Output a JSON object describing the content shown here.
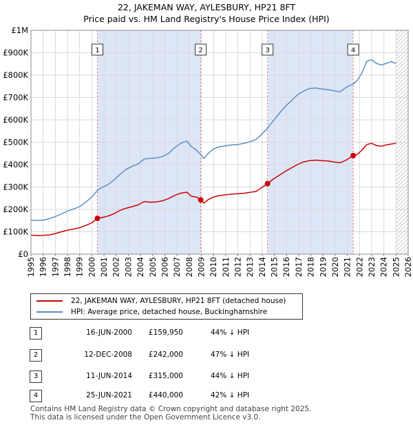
{
  "chart_data": {
    "type": "line",
    "title": "22, JAKEMAN WAY, AYLESBURY, HP21 8FT",
    "subtitle": "Price paid vs. HM Land Registry's House Price Index (HPI)",
    "xlim": [
      1995,
      2026
    ],
    "ylim": [
      0,
      1000000
    ],
    "x_ticks": [
      1995,
      1996,
      1997,
      1998,
      1999,
      2000,
      2001,
      2002,
      2003,
      2004,
      2005,
      2006,
      2007,
      2008,
      2009,
      2010,
      2011,
      2012,
      2013,
      2014,
      2015,
      2016,
      2017,
      2018,
      2019,
      2020,
      2021,
      2022,
      2023,
      2024,
      2025,
      2026
    ],
    "y_ticks": [
      {
        "value": 0,
        "label": "£0"
      },
      {
        "value": 100000,
        "label": "£100K"
      },
      {
        "value": 200000,
        "label": "£200K"
      },
      {
        "value": 300000,
        "label": "£300K"
      },
      {
        "value": 400000,
        "label": "£400K"
      },
      {
        "value": 500000,
        "label": "£500K"
      },
      {
        "value": 600000,
        "label": "£600K"
      },
      {
        "value": 700000,
        "label": "£700K"
      },
      {
        "value": 800000,
        "label": "£800K"
      },
      {
        "value": 900000,
        "label": "£900K"
      },
      {
        "value": 1000000,
        "label": "£1M"
      }
    ],
    "grid": true,
    "series": [
      {
        "name": "22, JAKEMAN WAY, AYLESBURY, HP21 8FT (detached house)",
        "color": "#cc0000",
        "points": [
          [
            1995.0,
            85000
          ],
          [
            1995.5,
            83000
          ],
          [
            1996.0,
            84000
          ],
          [
            1996.5,
            86000
          ],
          [
            1997.0,
            92000
          ],
          [
            1997.5,
            100000
          ],
          [
            1998.0,
            107000
          ],
          [
            1998.5,
            112000
          ],
          [
            1999.0,
            118000
          ],
          [
            1999.5,
            128000
          ],
          [
            2000.0,
            140000
          ],
          [
            2000.46,
            159950
          ],
          [
            2000.8,
            163000
          ],
          [
            2001.3,
            170000
          ],
          [
            2001.8,
            180000
          ],
          [
            2002.3,
            195000
          ],
          [
            2002.8,
            205000
          ],
          [
            2003.3,
            212000
          ],
          [
            2003.8,
            220000
          ],
          [
            2004.3,
            235000
          ],
          [
            2004.8,
            232000
          ],
          [
            2005.3,
            233000
          ],
          [
            2005.8,
            238000
          ],
          [
            2006.3,
            248000
          ],
          [
            2006.8,
            262000
          ],
          [
            2007.3,
            272000
          ],
          [
            2007.8,
            277000
          ],
          [
            2008.2,
            258000
          ],
          [
            2008.6,
            255000
          ],
          [
            2008.95,
            242000
          ],
          [
            2009.2,
            228000
          ],
          [
            2009.6,
            245000
          ],
          [
            2010.0,
            255000
          ],
          [
            2010.5,
            262000
          ],
          [
            2011.0,
            265000
          ],
          [
            2011.5,
            268000
          ],
          [
            2012.0,
            270000
          ],
          [
            2012.5,
            272000
          ],
          [
            2013.0,
            276000
          ],
          [
            2013.5,
            280000
          ],
          [
            2013.9,
            295000
          ],
          [
            2014.44,
            315000
          ],
          [
            2014.9,
            335000
          ],
          [
            2015.4,
            352000
          ],
          [
            2015.9,
            370000
          ],
          [
            2016.4,
            385000
          ],
          [
            2016.9,
            400000
          ],
          [
            2017.4,
            412000
          ],
          [
            2017.9,
            418000
          ],
          [
            2018.4,
            420000
          ],
          [
            2018.9,
            418000
          ],
          [
            2019.4,
            416000
          ],
          [
            2019.9,
            412000
          ],
          [
            2020.4,
            408000
          ],
          [
            2020.9,
            420000
          ],
          [
            2021.48,
            440000
          ],
          [
            2021.8,
            445000
          ],
          [
            2022.2,
            465000
          ],
          [
            2022.6,
            490000
          ],
          [
            2023.0,
            495000
          ],
          [
            2023.4,
            485000
          ],
          [
            2023.8,
            482000
          ],
          [
            2024.2,
            488000
          ],
          [
            2024.6,
            492000
          ],
          [
            2025.0,
            495000
          ]
        ]
      },
      {
        "name": "HPI: Average price, detached house, Buckinghamshire",
        "color": "#5b8ec4",
        "points": [
          [
            1995.0,
            152000
          ],
          [
            1995.5,
            150000
          ],
          [
            1996.0,
            152000
          ],
          [
            1996.5,
            158000
          ],
          [
            1997.0,
            168000
          ],
          [
            1997.5,
            180000
          ],
          [
            1998.0,
            192000
          ],
          [
            1998.5,
            202000
          ],
          [
            1999.0,
            212000
          ],
          [
            1999.5,
            232000
          ],
          [
            2000.0,
            255000
          ],
          [
            2000.46,
            285000
          ],
          [
            2000.8,
            297000
          ],
          [
            2001.3,
            310000
          ],
          [
            2001.8,
            330000
          ],
          [
            2002.3,
            355000
          ],
          [
            2002.8,
            378000
          ],
          [
            2003.3,
            392000
          ],
          [
            2003.8,
            403000
          ],
          [
            2004.3,
            425000
          ],
          [
            2004.8,
            428000
          ],
          [
            2005.3,
            430000
          ],
          [
            2005.8,
            436000
          ],
          [
            2006.3,
            450000
          ],
          [
            2006.8,
            475000
          ],
          [
            2007.3,
            495000
          ],
          [
            2007.8,
            505000
          ],
          [
            2008.2,
            480000
          ],
          [
            2008.6,
            465000
          ],
          [
            2008.95,
            445000
          ],
          [
            2009.2,
            428000
          ],
          [
            2009.6,
            452000
          ],
          [
            2010.0,
            470000
          ],
          [
            2010.5,
            480000
          ],
          [
            2011.0,
            484000
          ],
          [
            2011.5,
            488000
          ],
          [
            2012.0,
            490000
          ],
          [
            2012.5,
            495000
          ],
          [
            2013.0,
            502000
          ],
          [
            2013.5,
            512000
          ],
          [
            2013.9,
            532000
          ],
          [
            2014.44,
            562000
          ],
          [
            2014.9,
            595000
          ],
          [
            2015.4,
            628000
          ],
          [
            2015.9,
            660000
          ],
          [
            2016.4,
            685000
          ],
          [
            2016.9,
            712000
          ],
          [
            2017.4,
            728000
          ],
          [
            2017.9,
            740000
          ],
          [
            2018.4,
            742000
          ],
          [
            2018.9,
            738000
          ],
          [
            2019.4,
            735000
          ],
          [
            2019.9,
            730000
          ],
          [
            2020.4,
            725000
          ],
          [
            2020.9,
            745000
          ],
          [
            2021.48,
            760000
          ],
          [
            2021.8,
            775000
          ],
          [
            2022.2,
            810000
          ],
          [
            2022.6,
            862000
          ],
          [
            2023.0,
            868000
          ],
          [
            2023.4,
            852000
          ],
          [
            2023.8,
            845000
          ],
          [
            2024.2,
            852000
          ],
          [
            2024.6,
            860000
          ],
          [
            2025.0,
            852000
          ]
        ]
      }
    ],
    "transactions": [
      {
        "num": "1",
        "x": 2000.46,
        "y": 159950
      },
      {
        "num": "2",
        "x": 2008.95,
        "y": 242000
      },
      {
        "num": "3",
        "x": 2014.44,
        "y": 315000
      },
      {
        "num": "4",
        "x": 2021.48,
        "y": 440000
      }
    ],
    "shaded_spans": [
      [
        2000.46,
        2008.95
      ],
      [
        2014.44,
        2021.48
      ]
    ],
    "hatched_from": 2025.0
  },
  "legend": {
    "items": [
      {
        "label": "22, JAKEMAN WAY, AYLESBURY, HP21 8FT (detached house)",
        "color": "#cc0000"
      },
      {
        "label": "HPI: Average price, detached house, Buckinghamshire",
        "color": "#5b8ec4"
      }
    ]
  },
  "table": {
    "rows": [
      {
        "num": "1",
        "date": "16-JUN-2000",
        "price": "£159,950",
        "hpi": "44% ↓ HPI"
      },
      {
        "num": "2",
        "date": "12-DEC-2008",
        "price": "£242,000",
        "hpi": "47% ↓ HPI"
      },
      {
        "num": "3",
        "date": "11-JUN-2014",
        "price": "£315,000",
        "hpi": "44% ↓ HPI"
      },
      {
        "num": "4",
        "date": "25-JUN-2021",
        "price": "£440,000",
        "hpi": "42% ↓ HPI"
      }
    ]
  },
  "footer": {
    "line1": "Contains HM Land Registry data © Crown copyright and database right 2025.",
    "line2": "This data is licensed under the Open Government Licence v3.0."
  }
}
